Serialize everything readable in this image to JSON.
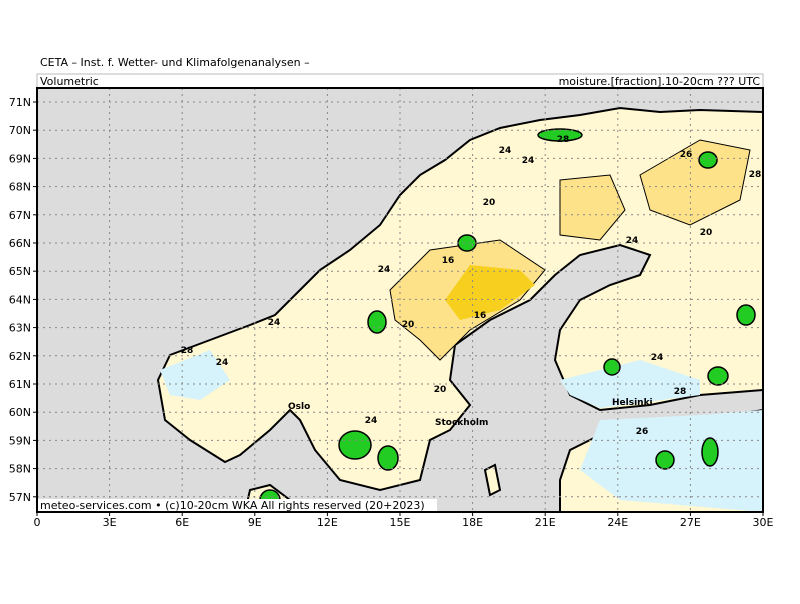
{
  "header": {
    "source": "CETA – Inst. f. Wetter- und Klimafolgenanalysen –",
    "left": "Volumetric",
    "right": "moisture.[fraction].10-20cm ??? UTC"
  },
  "map": {
    "lat_labels": [
      "71N",
      "70N",
      "69N",
      "68N",
      "67N",
      "66N",
      "65N",
      "64N",
      "63N",
      "62N",
      "61N",
      "60N",
      "59N",
      "58N",
      "57N"
    ],
    "lon_labels": [
      "0",
      "3E",
      "6E",
      "9E",
      "12E",
      "15E",
      "18E",
      "21E",
      "24E",
      "27E",
      "30E"
    ],
    "contour_labels": [
      "24",
      "24",
      "28",
      "26",
      "28",
      "20",
      "16",
      "16",
      "24",
      "20",
      "20",
      "24",
      "24",
      "24",
      "28",
      "24",
      "20",
      "24",
      "26",
      "28"
    ],
    "cities": [
      "Oslo",
      "Stockholm",
      "Helsinki"
    ]
  },
  "footer": "meteo-services.com • (c)10-20cm WKA All rights reserved (20+2023)"
}
